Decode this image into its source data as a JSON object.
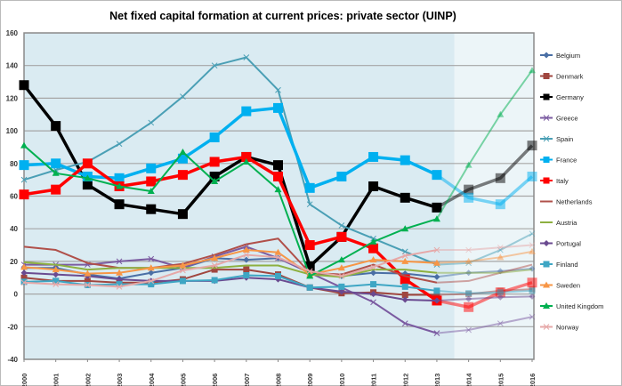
{
  "chart_data": {
    "type": "line",
    "title": "Net fixed capital formation at current prices: private sector (UINP)",
    "xlabel": "",
    "ylabel": "",
    "x": [
      2000,
      2001,
      2002,
      2003,
      2004,
      2005,
      2006,
      2007,
      2008,
      2009,
      2010,
      2011,
      2012,
      2013,
      2014,
      2015,
      2016
    ],
    "ylim": [
      -40,
      160
    ],
    "yticks": [
      -40,
      -20,
      0,
      20,
      40,
      60,
      80,
      100,
      120,
      140,
      160
    ],
    "grid": true,
    "legend": "right",
    "forecast_from": 2014,
    "series": [
      {
        "name": "Belgium",
        "color": "#4a6fa5",
        "marker": "diamond",
        "width": 2,
        "values": [
          16,
          16,
          12,
          9.5,
          13,
          16,
          22,
          21,
          22,
          13,
          11,
          13,
          12.5,
          10.5,
          13,
          14,
          15.5
        ]
      },
      {
        "name": "Denmark",
        "color": "#a0463f",
        "marker": "square",
        "width": 2,
        "values": [
          10,
          8,
          8,
          7,
          7,
          9,
          15,
          15,
          12,
          4,
          0.5,
          1,
          -0.5,
          -0.5,
          0,
          2,
          3
        ]
      },
      {
        "name": "Germany",
        "color": "#000000",
        "marker": "bigsquare",
        "width": 3.5,
        "values": [
          128,
          103,
          67,
          55,
          52,
          49,
          72,
          84,
          79,
          17,
          35,
          66,
          59,
          53,
          64,
          71,
          91
        ]
      },
      {
        "name": "Greece",
        "color": "#7b5ba1",
        "marker": "x",
        "width": 2,
        "values": [
          18,
          18,
          18,
          20,
          21.5,
          16,
          23,
          29,
          22,
          13,
          4,
          -5,
          -18,
          -24,
          -22,
          -18,
          -14
        ]
      },
      {
        "name": "Spain",
        "color": "#4a9fb5",
        "marker": "x",
        "width": 2,
        "values": [
          70,
          76,
          81,
          92,
          105,
          121,
          140,
          145,
          125,
          55,
          42,
          34,
          26,
          18,
          19,
          27,
          37
        ]
      },
      {
        "name": "France",
        "color": "#00b0f0",
        "marker": "bigsquare",
        "width": 3.5,
        "values": [
          79,
          80,
          72,
          71,
          77,
          83,
          96,
          112,
          114,
          65,
          72,
          84,
          82,
          73,
          59,
          55,
          72
        ]
      },
      {
        "name": "Italy",
        "color": "#ff0000",
        "marker": "bigsquare",
        "width": 3.5,
        "values": [
          61,
          64,
          80,
          66,
          69,
          73,
          81,
          84,
          72,
          30,
          35,
          28,
          9,
          -4,
          -8,
          1,
          7
        ]
      },
      {
        "name": "Netherlands",
        "color": "#b0504a",
        "marker": "none",
        "width": 2,
        "values": [
          29,
          27,
          19,
          16,
          16,
          18.5,
          24,
          30.5,
          34,
          13,
          12,
          18,
          11,
          7,
          8,
          13,
          18
        ]
      },
      {
        "name": "Austria",
        "color": "#8db040",
        "marker": "none",
        "width": 2,
        "values": [
          19.5,
          18,
          15,
          16,
          16,
          16,
          16,
          17.5,
          17.5,
          12,
          10.5,
          15,
          15,
          13,
          13,
          13,
          15
        ]
      },
      {
        "name": "Portugal",
        "color": "#6a4a90",
        "marker": "diamond",
        "width": 2,
        "values": [
          13,
          12,
          11,
          9,
          8,
          8,
          8,
          10,
          9,
          4,
          1.5,
          0,
          -3.5,
          -4,
          -3,
          -2,
          -1.5
        ]
      },
      {
        "name": "Finland",
        "color": "#3ea6c4",
        "marker": "square",
        "width": 2,
        "values": [
          7.5,
          8,
          5.5,
          6,
          6,
          8,
          8.5,
          11.5,
          11,
          4,
          4.5,
          6,
          4.5,
          2,
          0.5,
          1,
          2
        ]
      },
      {
        "name": "Sweden",
        "color": "#f79646",
        "marker": "triangle",
        "width": 2,
        "values": [
          16.5,
          15,
          12.5,
          13,
          16,
          17.5,
          22,
          27,
          25.5,
          12,
          16,
          21,
          20,
          19,
          20,
          22.5,
          26
        ]
      },
      {
        "name": "United Kingdom",
        "color": "#00b050",
        "marker": "triangle",
        "width": 2,
        "values": [
          91,
          74,
          71,
          66,
          63,
          87,
          69,
          81,
          64,
          11,
          21,
          32,
          40,
          46,
          79,
          110,
          137
        ]
      },
      {
        "name": "Norway",
        "color": "#e6a8a8",
        "marker": "x",
        "width": 2,
        "values": [
          7,
          6,
          5.5,
          4.5,
          8,
          14.5,
          17.5,
          24,
          22.5,
          14,
          11,
          16.5,
          23.5,
          27,
          27,
          28.5,
          30
        ]
      }
    ]
  }
}
